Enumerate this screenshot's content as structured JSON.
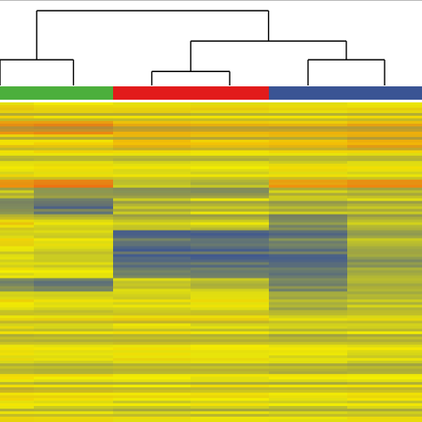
{
  "chart_data": {
    "type": "heatmap",
    "title": "",
    "xlabel": "",
    "ylabel": "",
    "colors": {
      "low": "#3a5494",
      "mid": "#f5ef00",
      "high": "#ef6f10",
      "mute": "#8f8f4e",
      "background": "#ffffff",
      "dendrogram": "#000000"
    },
    "groups": [
      {
        "color": "#4caf3c",
        "columns": [
          0,
          1
        ]
      },
      {
        "color": "#e21b1b",
        "columns": [
          2,
          3
        ]
      },
      {
        "color": "#3a5494",
        "columns": [
          4,
          5
        ]
      }
    ],
    "columns": 6,
    "dendrogram": {
      "merges": [
        {
          "left": "c0",
          "right": "c1",
          "height": 0.55
        },
        {
          "left": "c2",
          "right": "c3",
          "height": 0.3
        },
        {
          "left": "c4",
          "right": "c5",
          "height": 0.55
        },
        {
          "left": "m1",
          "right": "m2",
          "height": 0.95
        },
        {
          "left": "m0",
          "right": "m3",
          "height": 1.6
        }
      ]
    },
    "row_count": 120,
    "bands": [
      {
        "from": 0.0,
        "to": 0.06,
        "values": [
          0.15,
          0.15,
          0.1,
          0.1,
          0.05,
          0.1
        ]
      },
      {
        "from": 0.06,
        "to": 0.1,
        "values": [
          0.65,
          0.7,
          0.4,
          0.35,
          0.3,
          0.4
        ]
      },
      {
        "from": 0.1,
        "to": 0.15,
        "values": [
          0.1,
          0.1,
          0.35,
          0.25,
          0.25,
          0.45
        ]
      },
      {
        "from": 0.15,
        "to": 0.19,
        "values": [
          0.05,
          0.05,
          0.0,
          0.0,
          0.05,
          0.05
        ]
      },
      {
        "from": 0.19,
        "to": 0.24,
        "values": [
          0.05,
          0.1,
          0.0,
          0.0,
          0.1,
          0.0
        ]
      },
      {
        "from": 0.24,
        "to": 0.27,
        "values": [
          0.6,
          0.75,
          -0.4,
          -0.45,
          0.5,
          0.6
        ]
      },
      {
        "from": 0.27,
        "to": 0.3,
        "values": [
          -0.2,
          -0.5,
          -0.6,
          -0.6,
          -0.1,
          -0.2
        ]
      },
      {
        "from": 0.3,
        "to": 0.35,
        "values": [
          -0.75,
          -0.9,
          -0.3,
          -0.25,
          -0.4,
          -0.3
        ]
      },
      {
        "from": 0.35,
        "to": 0.4,
        "values": [
          0.1,
          -0.1,
          -0.2,
          -0.2,
          -0.7,
          -0.3
        ]
      },
      {
        "from": 0.4,
        "to": 0.48,
        "values": [
          0.0,
          -0.1,
          -0.9,
          -0.9,
          -0.8,
          -0.4
        ]
      },
      {
        "from": 0.48,
        "to": 0.55,
        "values": [
          -0.1,
          -0.15,
          -0.8,
          -0.85,
          -0.85,
          -0.5
        ]
      },
      {
        "from": 0.55,
        "to": 0.59,
        "values": [
          -0.7,
          -0.8,
          -0.2,
          -0.3,
          -0.7,
          -0.35
        ]
      },
      {
        "from": 0.59,
        "to": 0.65,
        "values": [
          0.05,
          0.0,
          0.0,
          0.05,
          -0.3,
          -0.2
        ]
      },
      {
        "from": 0.65,
        "to": 0.75,
        "values": [
          0.0,
          -0.05,
          0.0,
          0.0,
          -0.15,
          -0.1
        ]
      },
      {
        "from": 0.75,
        "to": 0.85,
        "values": [
          -0.05,
          -0.1,
          0.0,
          -0.05,
          -0.1,
          -0.15
        ]
      },
      {
        "from": 0.85,
        "to": 1.0,
        "values": [
          0.05,
          0.0,
          -0.05,
          -0.05,
          -0.1,
          -0.05
        ]
      }
    ]
  }
}
